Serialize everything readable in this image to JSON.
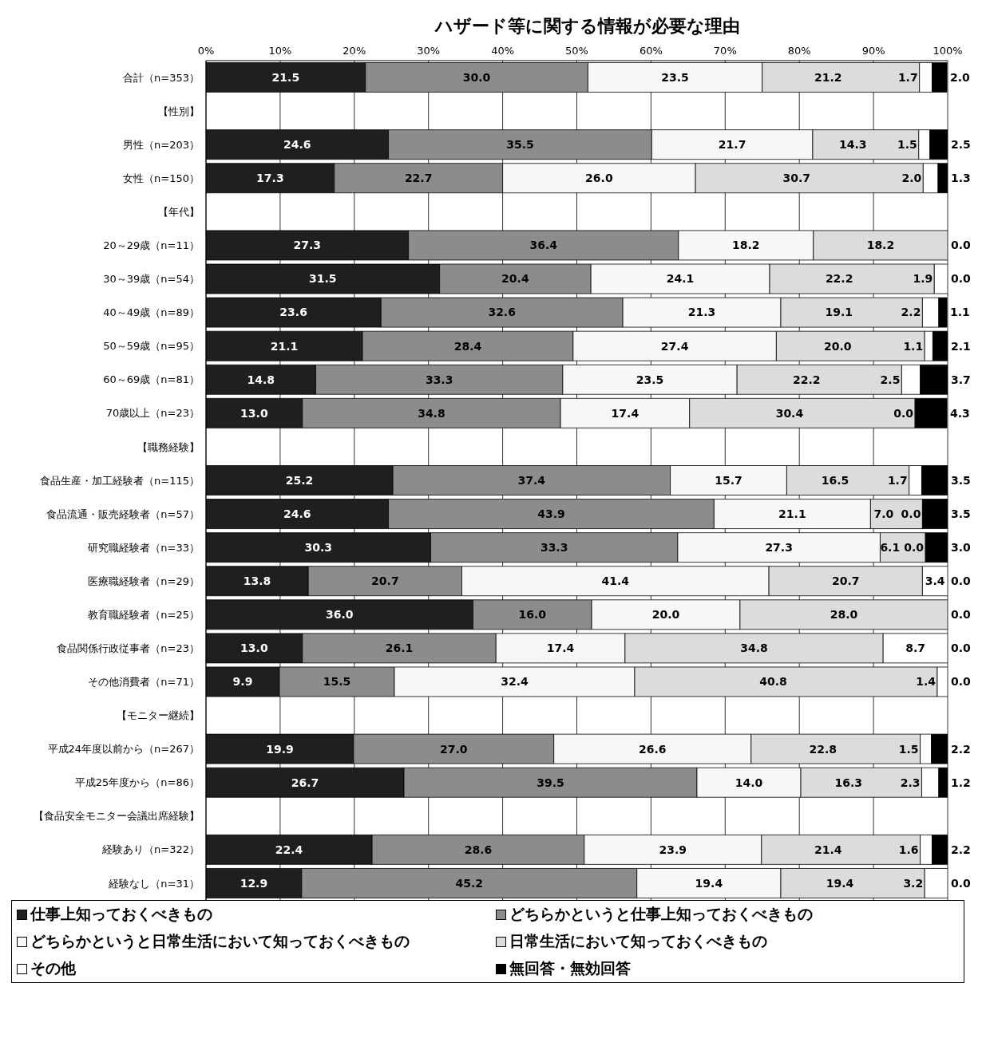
{
  "chart_data": {
    "type": "bar",
    "orientation": "horizontal",
    "stacked": true,
    "title": "ハザード等に関する情報が必要な理由",
    "categories": [
      "合計（n=353）",
      "【性別】",
      "男性（n=203）",
      "女性（n=150）",
      "【年代】",
      "20～29歳（n=11）",
      "30～39歳（n=54）",
      "40～49歳（n=89）",
      "50～59歳（n=95）",
      "60～69歳（n=81）",
      "70歳以上（n=23）",
      "【職務経験】",
      "食品生産・加工経験者（n=115）",
      "食品流通・販売経験者（n=57）",
      "研究職経験者（n=33）",
      "医療職経験者（n=29）",
      "教育職経験者（n=25）",
      "食品関係行政従事者（n=23）",
      "その他消費者（n=71）",
      "【モニター継続】",
      "平成24年度以前から（n=267）",
      "平成25年度から（n=86）",
      "【食品安全モニター会議出席経験】",
      "経験あり（n=322）",
      "経験なし（n=31）"
    ],
    "series": [
      {
        "name": "仕事上知っておくべきもの",
        "color": "#1f1f1f",
        "values": [
          21.5,
          null,
          24.6,
          17.3,
          null,
          27.3,
          31.5,
          23.6,
          21.1,
          14.8,
          13.0,
          null,
          25.2,
          24.6,
          30.3,
          13.8,
          36.0,
          13.0,
          9.9,
          null,
          19.9,
          26.7,
          null,
          22.4,
          12.9
        ],
        "value_labels": [
          "21.5",
          null,
          "24.6",
          "17.3",
          null,
          "27.3",
          "31.5",
          "23.6",
          "21.1",
          "14.8",
          "13.0",
          null,
          "25.2",
          "24.6",
          "30.3",
          "13.8",
          "36.0",
          "13.0",
          "9.9",
          null,
          "19.9",
          "26.7",
          null,
          "22.4",
          "12.9"
        ]
      },
      {
        "name": "どちらかというと仕事上知っておくべきもの",
        "color": "#8c8c8c",
        "values": [
          30.0,
          null,
          35.5,
          22.7,
          null,
          36.4,
          20.4,
          32.6,
          28.4,
          33.3,
          34.8,
          null,
          37.4,
          43.9,
          33.3,
          20.7,
          16.0,
          26.1,
          15.5,
          null,
          27.0,
          39.5,
          null,
          28.6,
          45.2
        ],
        "value_labels": [
          "30.0",
          null,
          "35.5",
          "22.7",
          null,
          "36.4",
          "20.4",
          "32.6",
          "28.4",
          "33.3",
          "34.8",
          null,
          "37.4",
          "43.9",
          "33.3",
          "20.7",
          "16.0",
          "26.1",
          "15.5",
          null,
          "27.0",
          "39.5",
          null,
          "28.6",
          "45.2"
        ]
      },
      {
        "name": "どちらかというと日常生活において知っておくべきもの",
        "color": "#f7f7f7",
        "values": [
          23.5,
          null,
          21.7,
          26.0,
          null,
          18.2,
          24.1,
          21.3,
          27.4,
          23.5,
          17.4,
          null,
          15.7,
          21.1,
          27.3,
          41.4,
          20.0,
          17.4,
          32.4,
          null,
          26.6,
          14.0,
          null,
          23.9,
          19.4
        ],
        "value_labels": [
          "23.5",
          null,
          "21.7",
          "26.0",
          null,
          "18.2",
          "24.1",
          "21.3",
          "27.4",
          "23.5",
          "17.4",
          null,
          "15.7",
          "21.1",
          "27.3",
          "41.4",
          "20.0",
          "17.4",
          "32.4",
          null,
          "26.6",
          "14.0",
          null,
          "23.9",
          "19.4"
        ]
      },
      {
        "name": "日常生活において知っておくべきもの",
        "color": "#dcdcdc",
        "values": [
          21.2,
          null,
          14.3,
          30.7,
          null,
          18.2,
          22.2,
          19.1,
          20.0,
          22.2,
          30.4,
          null,
          16.5,
          7.0,
          6.1,
          20.7,
          28.0,
          34.8,
          40.8,
          null,
          22.8,
          16.3,
          null,
          21.4,
          19.4
        ],
        "value_labels": [
          "21.2",
          null,
          "14.3",
          "30.7",
          null,
          "18.2",
          "22.2",
          "19.1",
          "20.0",
          "22.2",
          "30.4",
          null,
          "16.5",
          "7.0",
          "6.1",
          "20.7",
          "28.0",
          "34.8",
          "40.8",
          null,
          "22.8",
          "16.3",
          null,
          "21.4",
          "19.4"
        ]
      },
      {
        "name": "その他",
        "color": "#ffffff",
        "values": [
          1.7,
          null,
          1.5,
          2.0,
          null,
          0.0,
          1.9,
          2.2,
          1.1,
          2.5,
          0.0,
          null,
          1.7,
          0.0,
          0.0,
          3.4,
          0.0,
          8.7,
          1.4,
          null,
          1.5,
          2.3,
          null,
          1.6,
          3.2
        ],
        "value_labels": [
          "1.7",
          null,
          "1.5",
          "2.0",
          null,
          null,
          "1.9",
          "2.2",
          "1.1",
          "2.5",
          "0.0",
          null,
          "1.7",
          "0.0",
          "0.0",
          "3.4",
          null,
          "8.7",
          "1.4",
          null,
          "1.5",
          "2.3",
          null,
          "1.6",
          "3.2"
        ]
      },
      {
        "name": "無回答・無効回答",
        "color": "#000000",
        "values": [
          2.0,
          null,
          2.5,
          1.3,
          null,
          0.0,
          0.0,
          1.1,
          2.1,
          3.7,
          4.3,
          null,
          3.5,
          3.5,
          3.0,
          0.0,
          0.0,
          0.0,
          0.0,
          null,
          2.2,
          1.2,
          null,
          2.2,
          0.0
        ],
        "value_labels": [
          "2.0",
          null,
          "2.5",
          "1.3",
          null,
          "0.0",
          "0.0",
          "1.1",
          "2.1",
          "3.7",
          "4.3",
          null,
          "3.5",
          "3.5",
          "3.0",
          "0.0",
          "0.0",
          "0.0",
          "0.0",
          null,
          "2.2",
          "1.2",
          null,
          "2.2",
          "0.0"
        ]
      }
    ],
    "xlim": [
      0,
      100
    ],
    "xticks": [
      {
        "value": 0,
        "label": "0%"
      },
      {
        "value": 10,
        "label": "10%"
      },
      {
        "value": 20,
        "label": "20%"
      },
      {
        "value": 30,
        "label": "30%"
      },
      {
        "value": 40,
        "label": "40%"
      },
      {
        "value": 50,
        "label": "50%"
      },
      {
        "value": 60,
        "label": "60%"
      },
      {
        "value": 70,
        "label": "70%"
      },
      {
        "value": 80,
        "label": "80%"
      },
      {
        "value": 90,
        "label": "90%"
      },
      {
        "value": 100,
        "label": "100%"
      }
    ],
    "grid": "x",
    "legend": "bottom"
  }
}
